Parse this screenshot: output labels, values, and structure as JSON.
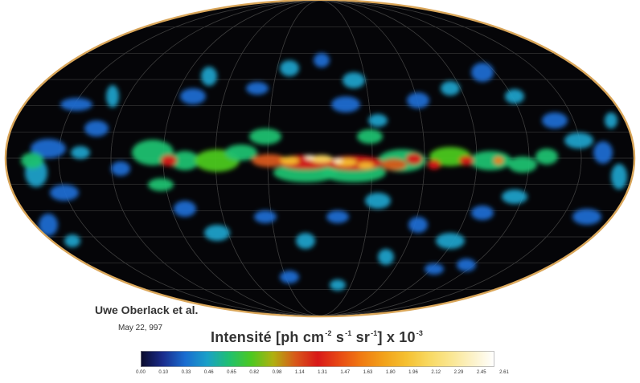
{
  "map": {
    "projection": "Aitoff/Mollweide all-sky",
    "background": "#050508",
    "rim_color": "#d9a65a",
    "grid_color": "#3a3a3a"
  },
  "credit": {
    "author": "Uwe Oberlack et al.",
    "date": "May 22, 997"
  },
  "colorbar": {
    "title": "Intensité",
    "unit_parts": [
      "[ph cm",
      "-2",
      " s",
      "-1",
      " sr",
      "-1",
      "] x 10",
      "-3"
    ],
    "ticks": [
      "0.00",
      "0.10",
      "0.33",
      "0.46",
      "0.65",
      "0.82",
      "0.98",
      "1.14",
      "1.31",
      "1.47",
      "1.63",
      "1.80",
      "1.96",
      "2.12",
      "2.29",
      "2.45",
      "2.61"
    ],
    "colors": [
      "#0a0a2a",
      "#1a2c8c",
      "#1a6cd0",
      "#1aa0c8",
      "#20c070",
      "#4cc820",
      "#b0b010",
      "#d8581a",
      "#d81818",
      "#e84a14",
      "#f07c12",
      "#f2a21a",
      "#f5c030",
      "#f8d860",
      "#fae690",
      "#fcf2c8",
      "#ffffff"
    ]
  }
}
